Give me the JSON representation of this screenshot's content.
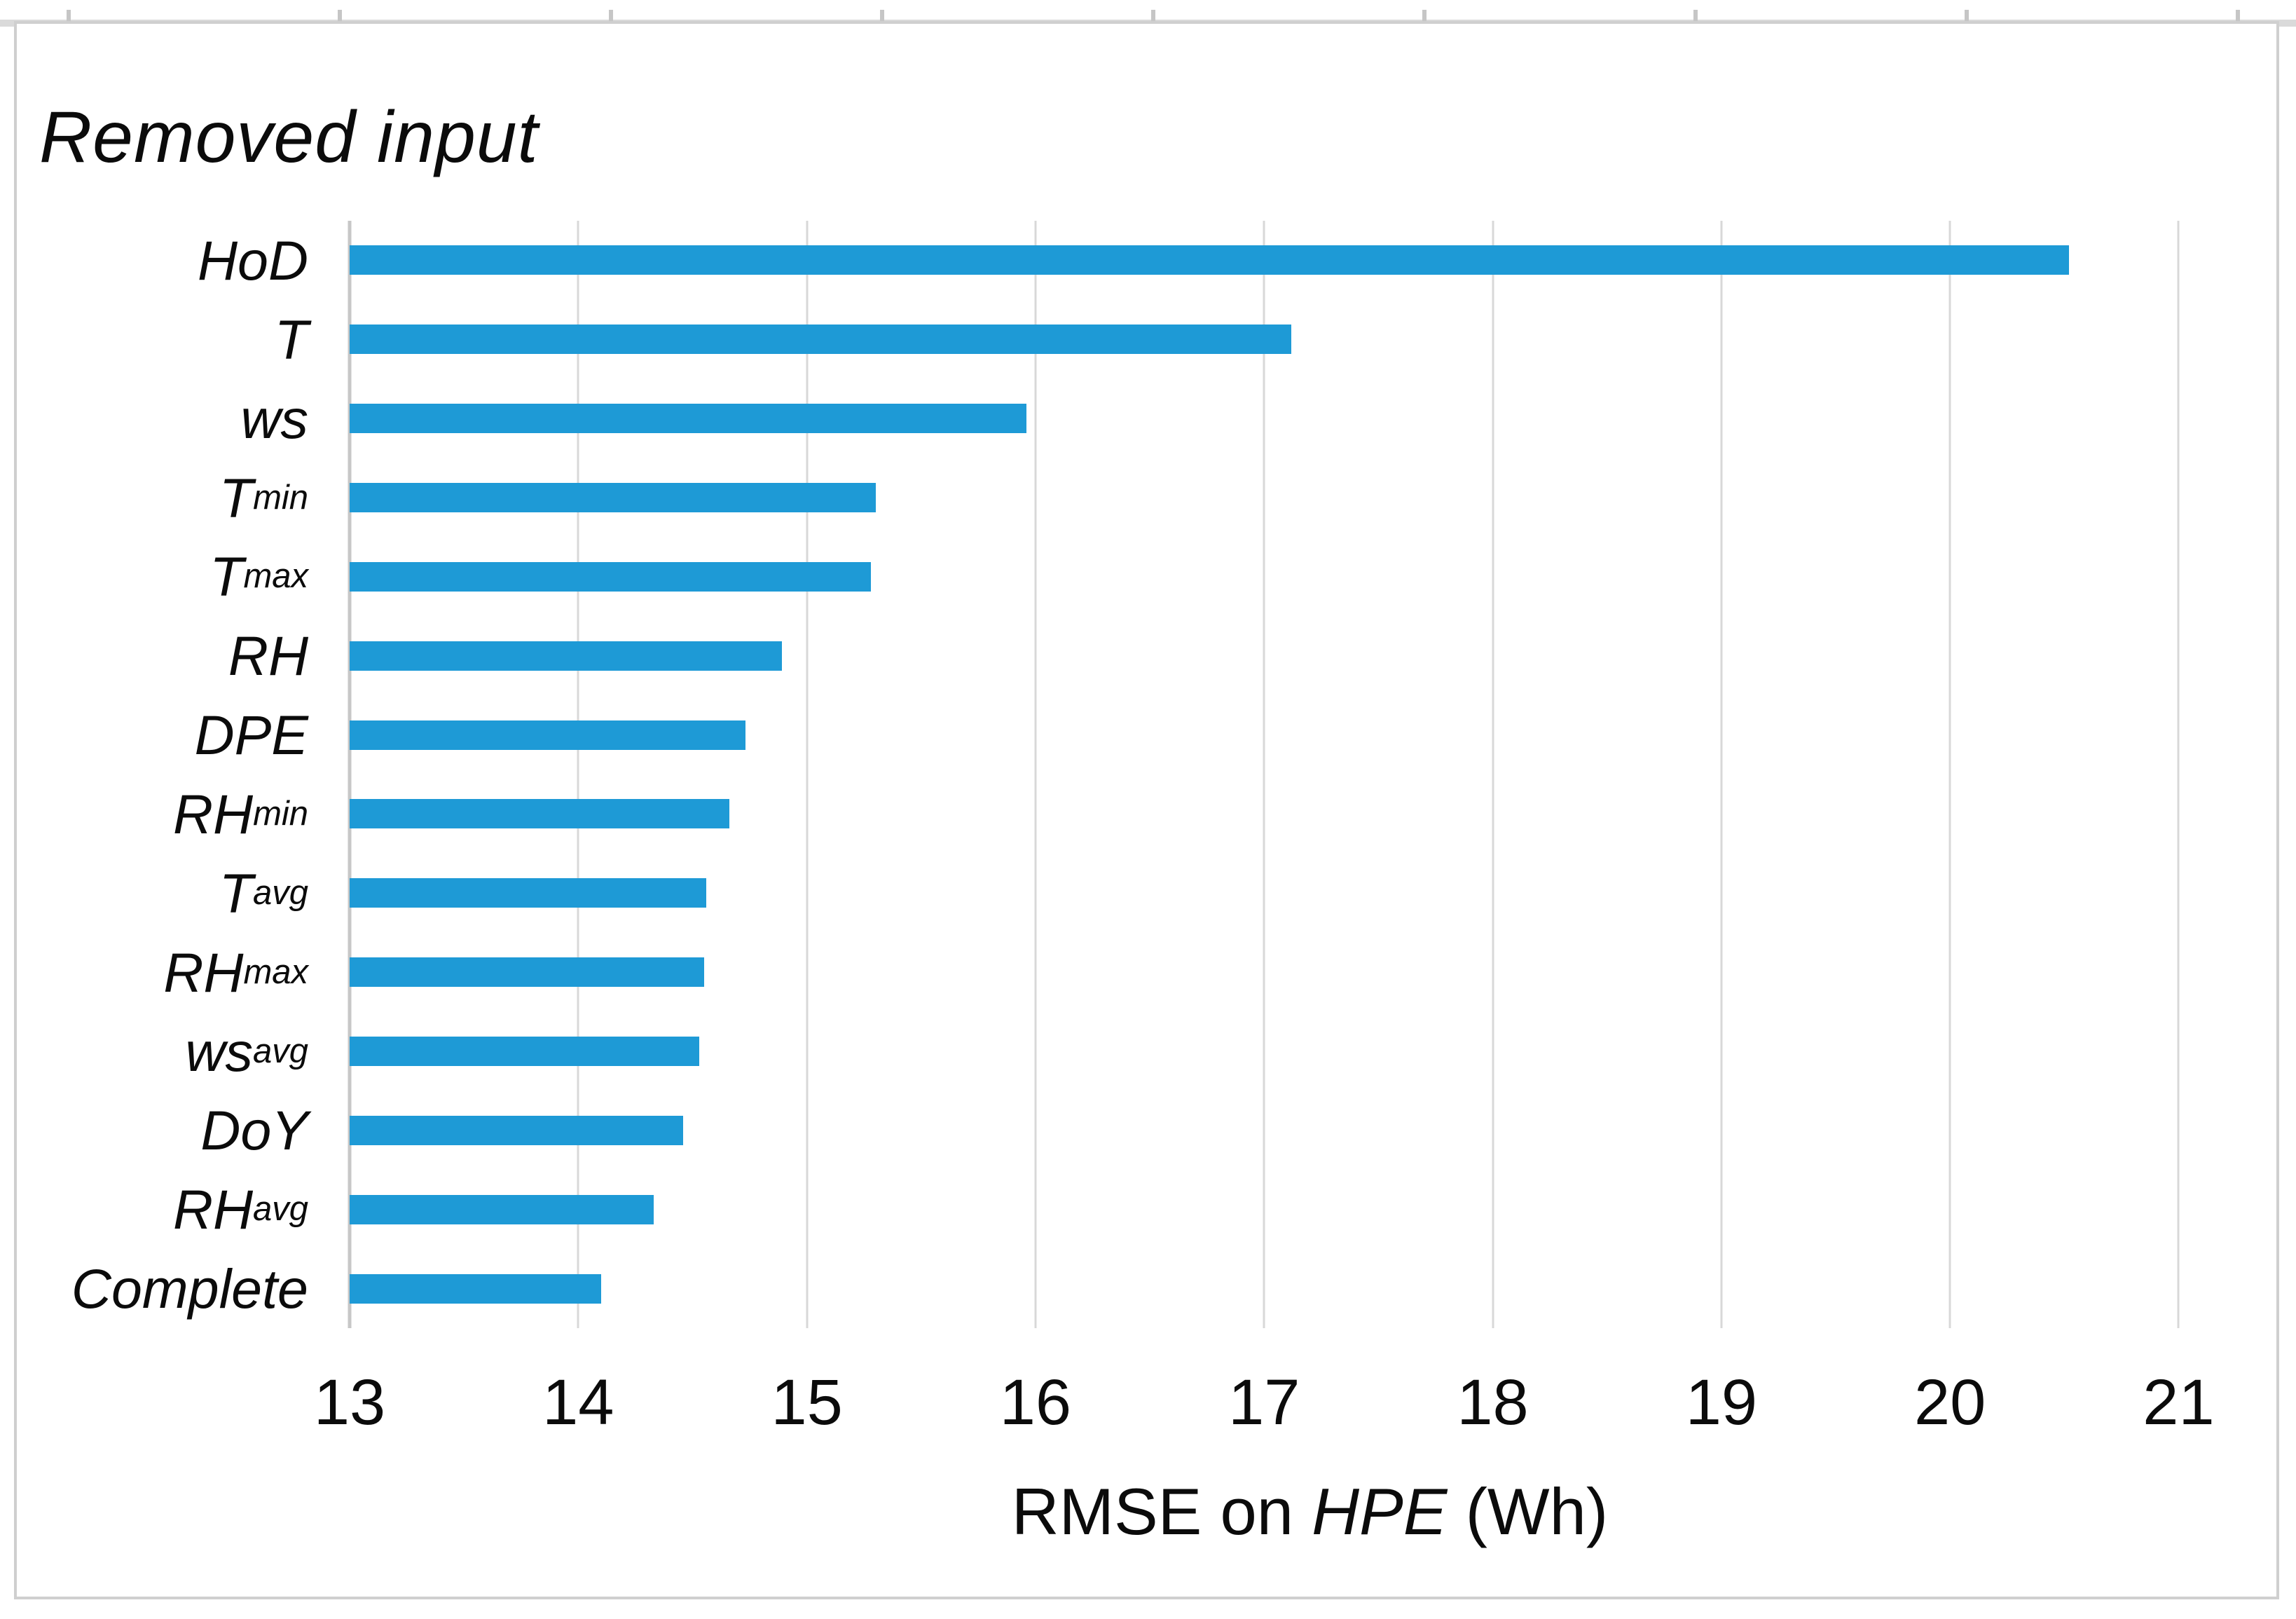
{
  "title": "Removed input",
  "x_axis": {
    "label_prefix": "RMSE on ",
    "label_italic": "HPE",
    "label_suffix": " (Wh)"
  },
  "chart_data": {
    "type": "bar",
    "orientation": "horizontal",
    "title": "Removed input",
    "xlabel": "RMSE on HPE (Wh)",
    "ylabel": "Removed input",
    "categories": [
      "HoD",
      "T",
      "ws",
      "Tmin",
      "Tmax",
      "RH",
      "DPE",
      "RHmin",
      "Tavg",
      "RHmax",
      "wsavg",
      "DoY",
      "RHavg",
      "Complete"
    ],
    "category_parts": [
      {
        "base": "HoD",
        "sub": ""
      },
      {
        "base": "T",
        "sub": ""
      },
      {
        "base": "ws",
        "sub": ""
      },
      {
        "base": "T",
        "sub": "min"
      },
      {
        "base": "T",
        "sub": "max"
      },
      {
        "base": "RH",
        "sub": ""
      },
      {
        "base": "DPE",
        "sub": ""
      },
      {
        "base": "RH",
        "sub": "min"
      },
      {
        "base": "T",
        "sub": "avg"
      },
      {
        "base": "RH",
        "sub": "max"
      },
      {
        "base": "ws",
        "sub": "avg"
      },
      {
        "base": "DoY",
        "sub": ""
      },
      {
        "base": "RH",
        "sub": "avg"
      },
      {
        "base": "Complete",
        "sub": ""
      }
    ],
    "values": [
      20.52,
      17.12,
      15.96,
      15.3,
      15.28,
      14.89,
      14.73,
      14.66,
      14.56,
      14.55,
      14.53,
      14.46,
      14.33,
      14.1
    ],
    "x_ticks": [
      13,
      14,
      15,
      16,
      17,
      18,
      19,
      20,
      21
    ],
    "xlim": [
      13,
      21.4
    ],
    "grid": "vertical",
    "legend": "none",
    "bar_color": "#1E9AD6",
    "gridline_color": "#D8D8D8",
    "axis_line_color": "#C7C7C7",
    "text_color": "#0B0B0B"
  }
}
